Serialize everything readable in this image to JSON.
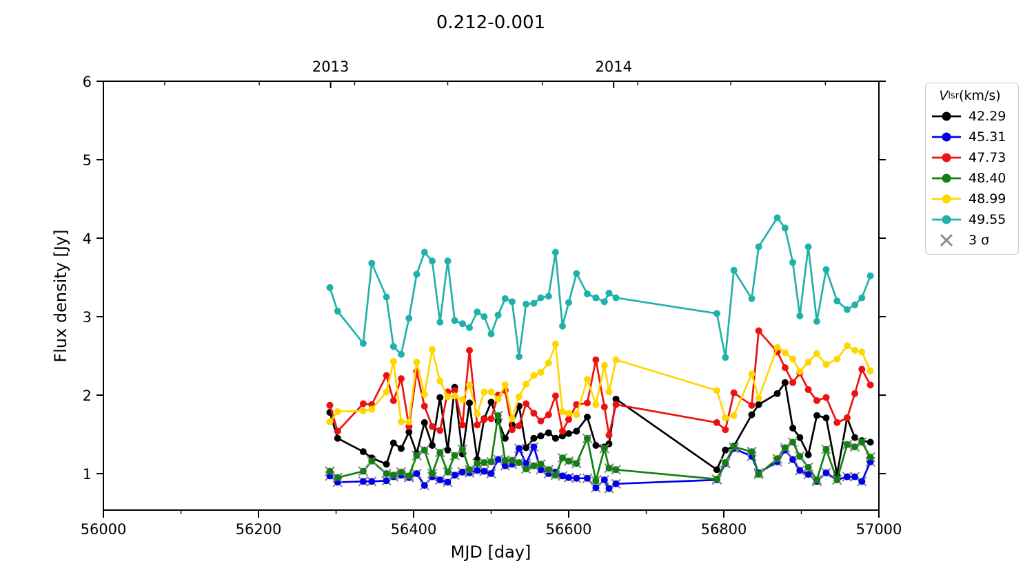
{
  "figure": {
    "title": "0.212-0.001",
    "xlabel": "MJD [day]",
    "ylabel": "Flux density [Jy]",
    "legend": {
      "title_v": "V",
      "title_sub": "lsr",
      "title_units": " (km/s)",
      "sigma_label": "3 σ",
      "sigma_color": "#8c8c8c"
    }
  },
  "chart_data": {
    "type": "line",
    "title": "0.212-0.001",
    "xlabel": "MJD [day]",
    "ylabel": "Flux density [Jy]",
    "grid": false,
    "legend_position": "outside-right",
    "legend_title": "V_lsr (km/s)",
    "xlim": [
      56000,
      57000
    ],
    "ylim": [
      0.535,
      6.0
    ],
    "x_ticks": [
      56000,
      56200,
      56400,
      56600,
      56800,
      57000
    ],
    "x_minor_ticks": [
      56100,
      56300,
      56500,
      56700,
      56900
    ],
    "y_ticks": [
      1,
      2,
      3,
      4,
      5,
      6
    ],
    "top_axis": {
      "major": [
        {
          "label": "2013",
          "mjd": 56293
        },
        {
          "label": "2014",
          "mjd": 56658
        }
      ],
      "minor_mjd": [
        56079,
        56201,
        56324,
        56444,
        56566,
        56689,
        56809,
        56931
      ]
    },
    "sigma_marker": {
      "label": "3 σ",
      "color": "#8c8c8c"
    },
    "x": [
      56292,
      56302,
      56335,
      56346,
      56365,
      56374,
      56384,
      56394,
      56404,
      56414,
      56424,
      56434,
      56444,
      56453,
      56463,
      56472,
      56482,
      56491,
      56500,
      56509,
      56518,
      56527,
      56536,
      56545,
      56555,
      56564,
      56574,
      56583,
      56592,
      56600,
      56610,
      56624,
      56635,
      56646,
      56652,
      56661,
      56791,
      56802,
      56813,
      56836,
      56845,
      56869,
      56879,
      56889,
      56898,
      56909,
      56920,
      56932,
      56946,
      56959,
      56969,
      56978,
      56989
    ],
    "series": [
      {
        "name": "42.29",
        "color": "#000000",
        "sigma_limits": false,
        "values": [
          1.78,
          1.45,
          1.28,
          1.2,
          1.12,
          1.39,
          1.32,
          1.53,
          1.26,
          1.65,
          1.36,
          1.97,
          1.3,
          2.1,
          1.25,
          1.9,
          1.18,
          1.7,
          1.91,
          1.67,
          1.45,
          1.62,
          1.86,
          1.33,
          1.45,
          1.48,
          1.52,
          1.45,
          1.48,
          1.51,
          1.54,
          1.72,
          1.36,
          1.34,
          1.38,
          1.95,
          1.05,
          1.3,
          1.35,
          1.75,
          1.88,
          2.02,
          2.16,
          1.58,
          1.46,
          1.24,
          1.74,
          1.71,
          0.99,
          1.71,
          1.46,
          1.42,
          1.4
        ]
      },
      {
        "name": "45.31",
        "color": "#0000ee",
        "sigma_limits": true,
        "values": [
          0.97,
          0.89,
          0.9,
          0.9,
          0.91,
          0.96,
          0.98,
          0.95,
          1.0,
          0.85,
          0.96,
          0.92,
          0.89,
          0.98,
          1.02,
          1.01,
          1.04,
          1.03,
          1.0,
          1.18,
          1.1,
          1.12,
          1.32,
          1.13,
          1.34,
          1.05,
          1.0,
          1.02,
          0.97,
          0.95,
          0.94,
          0.94,
          0.82,
          0.92,
          0.81,
          0.87,
          0.92,
          1.13,
          1.32,
          1.22,
          1.01,
          1.15,
          1.3,
          1.18,
          1.04,
          0.99,
          0.9,
          1.01,
          0.92,
          0.96,
          0.96,
          0.9,
          1.15
        ]
      },
      {
        "name": "47.73",
        "color": "#ee1111",
        "sigma_limits": false,
        "values": [
          1.87,
          1.54,
          1.89,
          1.88,
          2.25,
          1.93,
          2.21,
          1.6,
          2.3,
          1.86,
          1.6,
          1.55,
          2.04,
          2.06,
          1.62,
          2.57,
          1.62,
          1.69,
          1.7,
          2.0,
          2.06,
          1.56,
          1.61,
          1.89,
          1.77,
          1.67,
          1.75,
          1.99,
          1.54,
          1.69,
          1.88,
          1.9,
          2.45,
          1.85,
          1.49,
          1.88,
          1.65,
          1.56,
          2.03,
          1.87,
          2.82,
          2.55,
          2.35,
          2.16,
          2.28,
          2.07,
          1.93,
          1.97,
          1.65,
          1.71,
          2.02,
          2.33,
          2.13
        ]
      },
      {
        "name": "48.40",
        "color": "#128012",
        "sigma_limits": true,
        "values": [
          1.03,
          0.95,
          1.03,
          1.16,
          1.0,
          0.98,
          1.02,
          0.97,
          1.23,
          1.3,
          1.0,
          1.27,
          1.02,
          1.23,
          1.31,
          1.05,
          1.13,
          1.14,
          1.15,
          1.74,
          1.17,
          1.17,
          1.14,
          1.06,
          1.1,
          1.12,
          1.05,
          0.98,
          1.2,
          1.16,
          1.13,
          1.45,
          0.91,
          1.32,
          1.07,
          1.05,
          0.93,
          1.14,
          1.34,
          1.28,
          0.99,
          1.19,
          1.33,
          1.4,
          1.22,
          1.08,
          0.92,
          1.31,
          0.92,
          1.37,
          1.34,
          1.4,
          1.21
        ]
      },
      {
        "name": "48.99",
        "color": "#ffd700",
        "sigma_limits": false,
        "values": [
          1.66,
          1.79,
          1.8,
          1.82,
          2.04,
          2.43,
          1.66,
          1.66,
          2.42,
          2.01,
          2.58,
          2.18,
          1.98,
          1.99,
          1.94,
          2.13,
          1.76,
          2.04,
          2.04,
          1.95,
          2.13,
          1.7,
          1.98,
          2.14,
          2.25,
          2.29,
          2.41,
          2.65,
          1.79,
          1.77,
          1.75,
          2.2,
          1.88,
          2.38,
          2.04,
          2.45,
          2.06,
          1.71,
          1.74,
          2.27,
          1.96,
          2.61,
          2.54,
          2.46,
          2.3,
          2.42,
          2.53,
          2.39,
          2.46,
          2.63,
          2.57,
          2.55,
          2.31
        ]
      },
      {
        "name": "49.55",
        "color": "#20b2aa",
        "sigma_limits": false,
        "values": [
          3.37,
          3.07,
          2.66,
          3.68,
          3.25,
          2.62,
          2.52,
          2.98,
          3.54,
          3.82,
          3.71,
          2.93,
          3.71,
          2.95,
          2.91,
          2.86,
          3.06,
          3.0,
          2.78,
          3.02,
          3.23,
          3.19,
          2.49,
          3.16,
          3.17,
          3.24,
          3.26,
          3.82,
          2.88,
          3.18,
          3.55,
          3.29,
          3.24,
          3.19,
          3.3,
          3.24,
          3.04,
          2.48,
          3.59,
          3.23,
          3.89,
          4.26,
          4.13,
          3.69,
          3.01,
          3.89,
          2.94,
          3.6,
          3.2,
          3.09,
          3.15,
          3.24,
          3.52
        ]
      }
    ]
  }
}
